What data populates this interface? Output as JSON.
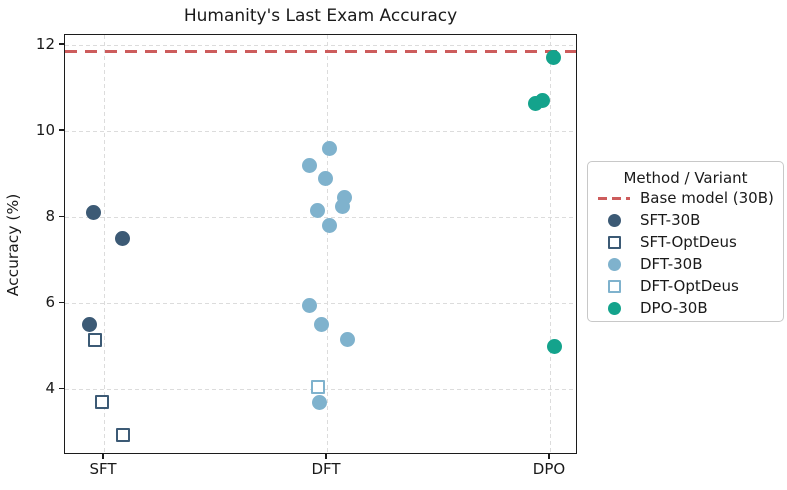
{
  "chart_data": {
    "type": "scatter",
    "title": "Humanity's Last Exam Accuracy",
    "ylabel": "Accuracy (%)",
    "xlabel": "",
    "x_categories": [
      "SFT",
      "DFT",
      "DPO"
    ],
    "y_ticks": [
      12,
      10,
      8,
      6,
      4
    ],
    "ylim": [
      2.45,
      12.25
    ],
    "grid": true,
    "grid_color": "#dcdcdc",
    "legend": {
      "title": "Method / Variant",
      "position": "center-right-outside"
    },
    "baseline": {
      "label": "Base model (30B)",
      "value": 11.85,
      "line_style": "dashed",
      "color": "#cd5c5c"
    },
    "series": [
      {
        "name": "SFT-30B",
        "marker": "circle",
        "fill": "solid",
        "color": "#3c5a75",
        "points": [
          {
            "category": "SFT",
            "value": 8.1,
            "jitter": -11
          },
          {
            "category": "SFT",
            "value": 7.5,
            "jitter": 18
          },
          {
            "category": "SFT",
            "value": 5.5,
            "jitter": -15
          }
        ]
      },
      {
        "name": "SFT-OptDeus",
        "marker": "square",
        "fill": "open",
        "color": "#3c5a75",
        "points": [
          {
            "category": "SFT",
            "value": 5.15,
            "jitter": -9
          },
          {
            "category": "SFT",
            "value": 3.7,
            "jitter": -2
          },
          {
            "category": "SFT",
            "value": 2.95,
            "jitter": 19
          }
        ]
      },
      {
        "name": "DFT-30B",
        "marker": "circle",
        "fill": "solid",
        "color": "#7fb2cd",
        "points": [
          {
            "category": "DFT",
            "value": 9.6,
            "jitter": 2
          },
          {
            "category": "DFT",
            "value": 9.2,
            "jitter": -18
          },
          {
            "category": "DFT",
            "value": 8.9,
            "jitter": -2
          },
          {
            "category": "DFT",
            "value": 8.45,
            "jitter": 17
          },
          {
            "category": "DFT",
            "value": 8.25,
            "jitter": 15
          },
          {
            "category": "DFT",
            "value": 8.15,
            "jitter": -10
          },
          {
            "category": "DFT",
            "value": 7.8,
            "jitter": 2
          },
          {
            "category": "DFT",
            "value": 5.95,
            "jitter": -18
          },
          {
            "category": "DFT",
            "value": 5.5,
            "jitter": -6
          },
          {
            "category": "DFT",
            "value": 5.15,
            "jitter": 20
          },
          {
            "category": "DFT",
            "value": 3.7,
            "jitter": -8
          }
        ]
      },
      {
        "name": "DFT-OptDeus",
        "marker": "square",
        "fill": "open",
        "color": "#7fb2cd",
        "points": [
          {
            "category": "DFT",
            "value": 4.05,
            "jitter": -9
          }
        ]
      },
      {
        "name": "DPO-30B",
        "marker": "circle",
        "fill": "solid",
        "color": "#14a38c",
        "points": [
          {
            "category": "DPO",
            "value": 11.7,
            "jitter": 3
          },
          {
            "category": "DPO",
            "value": 10.7,
            "jitter": -8
          },
          {
            "category": "DPO",
            "value": 10.65,
            "jitter": -15
          },
          {
            "category": "DPO",
            "value": 5.0,
            "jitter": 4
          }
        ]
      }
    ]
  }
}
